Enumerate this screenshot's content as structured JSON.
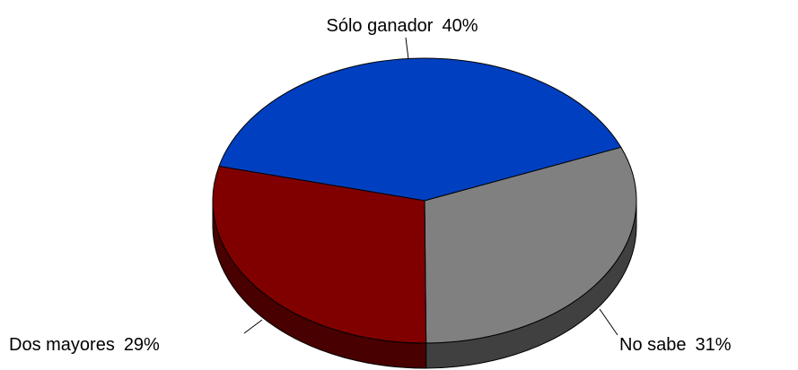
{
  "chart_data": {
    "type": "pie3d",
    "categories": [
      "Sólo ganador",
      "No sabe",
      "Dos mayores"
    ],
    "values": [
      40,
      31,
      29
    ],
    "value_labels": [
      "40%",
      "31%",
      "29%"
    ],
    "colors": [
      "#0040c0",
      "#808080",
      "#800000"
    ],
    "side_colors": [
      "#00206a",
      "#404040",
      "#480000"
    ]
  }
}
